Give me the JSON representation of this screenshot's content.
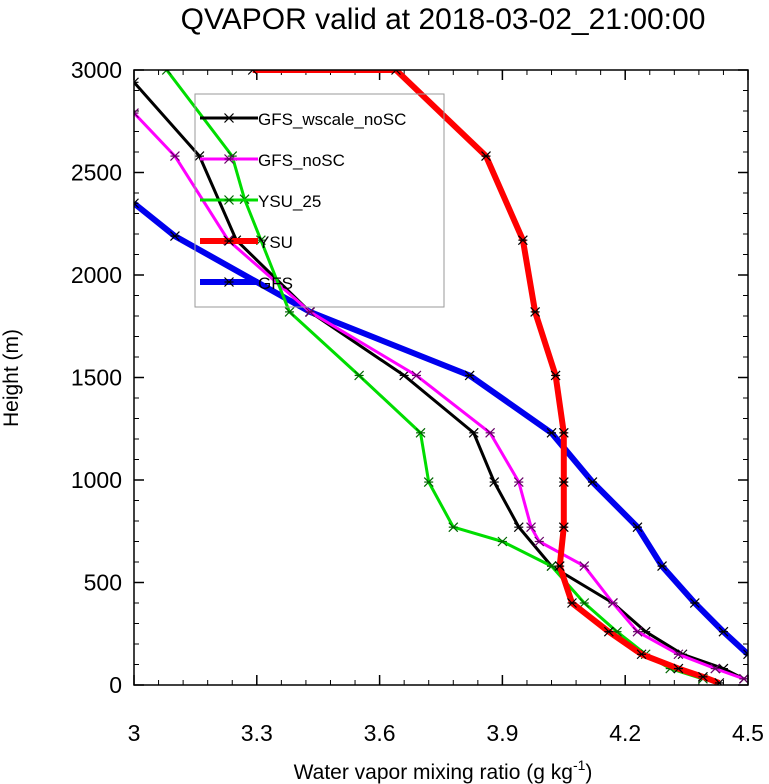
{
  "chart_data": {
    "type": "line",
    "title": "QVAPOR valid at 2018-03-02_21:00:00",
    "xlabel": "Water vapor mixing ratio (g kg",
    "xlabel_sup": "-1",
    "xlabel_end": ")",
    "ylabel": "Height (m)",
    "xlim": [
      3.0,
      4.5
    ],
    "ylim": [
      0,
      3000
    ],
    "x_ticks": [
      3.0,
      3.3,
      3.6,
      3.9,
      4.2,
      4.5
    ],
    "x_tick_labels": [
      "3",
      "3.3",
      "3.6",
      "3.9",
      "4.2",
      "4.5"
    ],
    "y_ticks": [
      0,
      500,
      1000,
      1500,
      2000,
      2500,
      3000
    ],
    "y_tick_labels": [
      "0",
      "500",
      "1000",
      "1500",
      "2000",
      "2500",
      "3000"
    ],
    "grid": false,
    "legend_position": "top-left",
    "series": [
      {
        "name": "GFS_wscale_noSC",
        "color": "#000000",
        "width": 3,
        "markers": true,
        "x": [
          4.49,
          4.44,
          4.34,
          4.25,
          4.17,
          4.02,
          3.94,
          3.88,
          3.83,
          3.66,
          3.43,
          3.25,
          3.16,
          3.0
        ],
        "y": [
          30,
          80,
          150,
          260,
          400,
          580,
          770,
          990,
          1230,
          1510,
          1820,
          2170,
          2580,
          2940
        ]
      },
      {
        "name": "GFS_noSC",
        "color": "#ff00ff",
        "width": 3,
        "markers": true,
        "x": [
          4.49,
          4.42,
          4.33,
          4.23,
          4.17,
          4.1,
          3.99,
          3.97,
          3.94,
          3.87,
          3.69,
          3.43,
          3.23,
          3.1,
          3.0
        ],
        "y": [
          30,
          80,
          150,
          260,
          400,
          580,
          700,
          770,
          990,
          1230,
          1510,
          1820,
          2170,
          2580,
          2790
        ]
      },
      {
        "name": "YSU_25",
        "color": "#00dd00",
        "width": 3,
        "markers": true,
        "x": [
          4.39,
          4.31,
          4.25,
          4.18,
          4.1,
          4.02,
          3.9,
          3.78,
          3.72,
          3.7,
          3.55,
          3.38,
          3.31,
          3.27,
          3.24,
          3.08
        ],
        "y": [
          30,
          80,
          150,
          260,
          400,
          580,
          700,
          770,
          990,
          1230,
          1510,
          1820,
          2170,
          2370,
          2580,
          3000
        ]
      },
      {
        "name": "YSU",
        "color": "#ff0000",
        "width": 6,
        "markers": true,
        "x": [
          4.43,
          4.39,
          4.33,
          4.24,
          4.16,
          4.07,
          4.04,
          4.05,
          4.05,
          4.05,
          4.03,
          3.98,
          3.95,
          3.86,
          3.64,
          3.29
        ],
        "y": [
          10,
          40,
          80,
          150,
          260,
          400,
          580,
          770,
          990,
          1230,
          1510,
          1820,
          2170,
          2580,
          3000,
          3000
        ]
      },
      {
        "name": "GFS",
        "color": "#0000ee",
        "width": 6,
        "markers": true,
        "x": [
          4.5,
          4.44,
          4.37,
          4.29,
          4.23,
          4.12,
          4.02,
          3.82,
          3.43,
          3.1,
          3.0
        ],
        "y": [
          150,
          260,
          400,
          580,
          770,
          990,
          1230,
          1510,
          1820,
          2190,
          2350
        ]
      }
    ]
  }
}
